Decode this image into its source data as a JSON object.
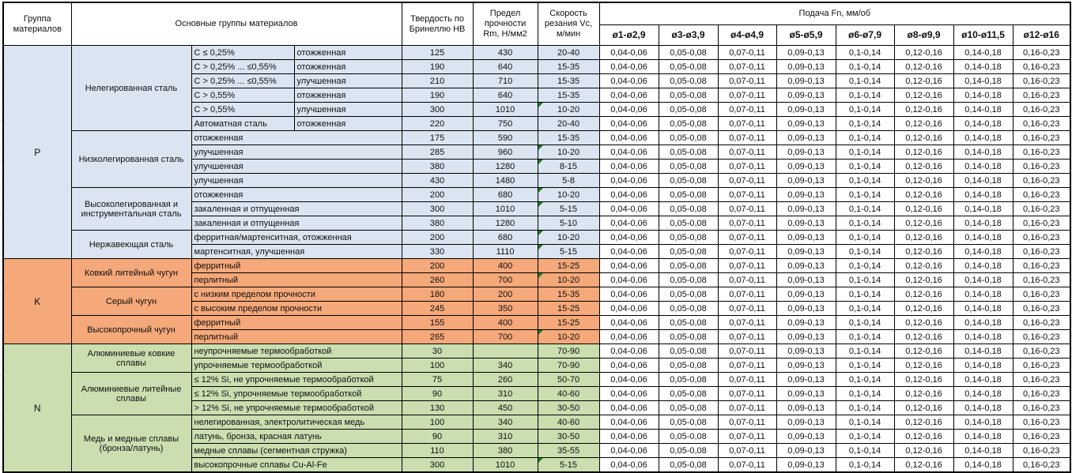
{
  "colors": {
    "p_bg": "#dbe5f1",
    "k_bg": "#f5a879",
    "n_bg": "#cadeb0",
    "comment_indicator": "#1e7a1e",
    "border": "#000000",
    "header_bg": "#ffffff"
  },
  "header": {
    "col_group": "Группа материалов",
    "col_main": "Основные группы материалов",
    "col_hb": "Твердость по Бринеллю HB",
    "col_rm": "Предел прочности Rm, Н/мм2",
    "col_vc": "Скорость резания Vc, м/мин",
    "feed_title": "Подача Fn, мм/об",
    "feed_cols": [
      "ø1-ø2,9",
      "ø3-ø3,9",
      "ø4-ø4,9",
      "ø5-ø5,9",
      "ø6-ø7,9",
      "ø8-ø9,9",
      "ø10-ø11,5",
      "ø12-ø16"
    ]
  },
  "feed_values": [
    "0,04-0,06",
    "0,05-0,08",
    "0,07-0,11",
    "0,09-0,13",
    "0,1-0,14",
    "0,12-0,16",
    "0,14-0,18",
    "0,16-0,23"
  ],
  "sections": [
    {
      "code": "P",
      "color_key": "p_bg",
      "groups": [
        {
          "label": "Нелегированная сталь",
          "rows": [
            {
              "condition": "C ≤ 0,25%",
              "state": "отожженная",
              "hb": "125",
              "rm": "430",
              "vc": "20-40",
              "comment": false
            },
            {
              "condition": "C > 0,25% ... ≤0,55%",
              "state": "отожженная",
              "hb": "190",
              "rm": "640",
              "vc": "15-35",
              "comment": false
            },
            {
              "condition": "C > 0,25% ... ≤0,55%",
              "state": "улучшенная",
              "hb": "210",
              "rm": "710",
              "vc": "15-35",
              "comment": false
            },
            {
              "condition": "C > 0,55%",
              "state": "отожженная",
              "hb": "190",
              "rm": "640",
              "vc": "15-35",
              "comment": false
            },
            {
              "condition": "C > 0,55%",
              "state": "улучшенная",
              "hb": "300",
              "rm": "1010",
              "vc": "10-20",
              "comment": true
            },
            {
              "condition": "Автоматная сталь",
              "state": "отожженная",
              "hb": "220",
              "rm": "750",
              "vc": "20-40",
              "comment": false
            }
          ]
        },
        {
          "label": "Низколегированная сталь",
          "rows": [
            {
              "desc": "отожженная",
              "hb": "175",
              "rm": "590",
              "vc": "15-35",
              "comment": false
            },
            {
              "desc": "улучшенная",
              "hb": "285",
              "rm": "960",
              "vc": "10-20",
              "comment": true
            },
            {
              "desc": "улучшенная",
              "hb": "380",
              "rm": "1280",
              "vc": "8-15",
              "comment": true
            },
            {
              "desc": "улучшенная",
              "hb": "430",
              "rm": "1480",
              "vc": "5-8",
              "comment": false
            }
          ]
        },
        {
          "label": "Высоколегированная и инструментальная сталь",
          "rows": [
            {
              "desc": "отожженная",
              "hb": "200",
              "rm": "680",
              "vc": "10-20",
              "comment": true
            },
            {
              "desc": "закаленная и отпущенная",
              "hb": "300",
              "rm": "1010",
              "vc": "5-15",
              "comment": true
            },
            {
              "desc": "закаленная и отпущенная",
              "hb": "380",
              "rm": "1280",
              "vc": "5-10",
              "comment": false
            }
          ]
        },
        {
          "label": "Нержавеющая сталь",
          "rows": [
            {
              "desc": "ферритная/мартенситная, отожженная",
              "hb": "200",
              "rm": "680",
              "vc": "10-20",
              "comment": true
            },
            {
              "desc": "мартенситная, улучшенная",
              "hb": "330",
              "rm": "1110",
              "vc": "5-15",
              "comment": true
            }
          ]
        }
      ]
    },
    {
      "code": "K",
      "color_key": "k_bg",
      "groups": [
        {
          "label": "Ковкий литейный чугун",
          "rows": [
            {
              "desc": "ферритный",
              "hb": "200",
              "rm": "400",
              "vc": "15-25",
              "comment": false
            },
            {
              "desc": "перлитный",
              "hb": "260",
              "rm": "700",
              "vc": "10-20",
              "comment": true
            }
          ]
        },
        {
          "label": "Серый чугун",
          "rows": [
            {
              "desc": "с низким пределом прочности",
              "hb": "180",
              "rm": "200",
              "vc": "15-35",
              "comment": false
            },
            {
              "desc": "с высоким пределом прочности",
              "hb": "245",
              "rm": "350",
              "vc": "15-25",
              "comment": false
            }
          ]
        },
        {
          "label": "Высокопрочный чугун",
          "rows": [
            {
              "desc": "ферритный",
              "hb": "155",
              "rm": "400",
              "vc": "15-25",
              "comment": false
            },
            {
              "desc": "перлитный",
              "hb": "265",
              "rm": "700",
              "vc": "10-20",
              "comment": true
            }
          ]
        }
      ]
    },
    {
      "code": "N",
      "color_key": "n_bg",
      "groups": [
        {
          "label": "Алюминиевые ковкие сплавы",
          "rows": [
            {
              "desc": "неупрочняемые термообработкой",
              "hb": "30",
              "rm": "",
              "vc": "70-90",
              "comment": false
            },
            {
              "desc": "упрочняемые термообработкой",
              "hb": "100",
              "rm": "340",
              "vc": "70-90",
              "comment": false
            }
          ]
        },
        {
          "label": "Алюминиевые литейные сплавы",
          "rows": [
            {
              "desc": "≤ 12% Si, не упрочняемые термообработкой",
              "hb": "75",
              "rm": "260",
              "vc": "50-70",
              "comment": false
            },
            {
              "desc": "≤ 12% Si, упрочняемые термообработкой",
              "hb": "90",
              "rm": "310",
              "vc": "40-60",
              "comment": false
            },
            {
              "desc": "> 12% Si, не упрочняемые термообработкой",
              "hb": "130",
              "rm": "450",
              "vc": "30-50",
              "comment": false
            }
          ]
        },
        {
          "label": "Медь и медные сплавы (бронза/латунь)",
          "rows": [
            {
              "desc": "нелегированная, электролитическая медь",
              "hb": "100",
              "rm": "340",
              "vc": "40-60",
              "comment": false
            },
            {
              "desc": "латунь, бронза, красная латунь",
              "hb": "90",
              "rm": "310",
              "vc": "30-50",
              "comment": false
            },
            {
              "desc": "медные сплавы (сегментная стружка)",
              "hb": "110",
              "rm": "380",
              "vc": "35-55",
              "comment": false
            },
            {
              "desc": "высокопрочные сплавы Cu-Al-Fe",
              "hb": "300",
              "rm": "1010",
              "vc": "5-15",
              "comment": true
            }
          ]
        }
      ]
    }
  ]
}
